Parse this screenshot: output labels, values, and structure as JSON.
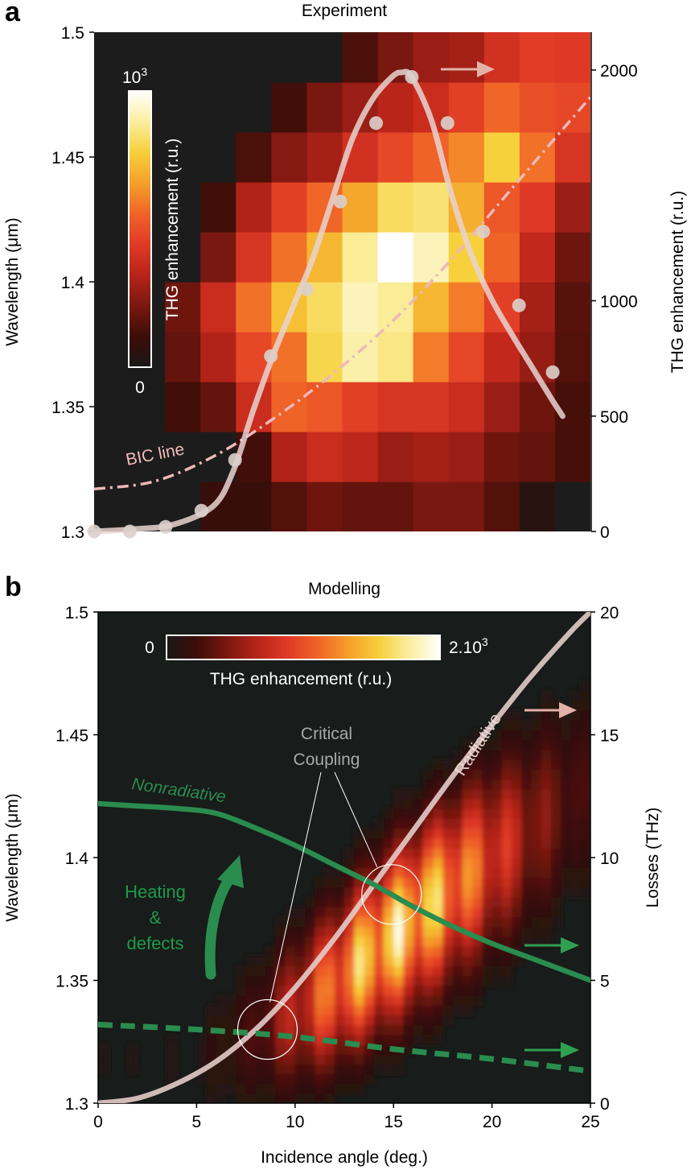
{
  "chart_data": [
    {
      "panel": "a",
      "type": "heatmap",
      "title": "Experiment",
      "ylabel": "Wavelength (μm)",
      "y2label": "THG enhancement (r.u.)",
      "ylim": [
        1.3,
        1.5
      ],
      "xlim": [
        0,
        25
      ],
      "y2lim": [
        0,
        2000
      ],
      "yticks": [
        "1.3",
        "1.35",
        "1.4",
        "1.45",
        "1.5"
      ],
      "y2ticks": [
        "0",
        "500",
        "1000",
        "2000"
      ],
      "colorbar": {
        "label": "THG enhancement (r.u.)",
        "min_label": "0",
        "max_label": "10",
        "max_exp": "3"
      },
      "heatmap": {
        "x_bins_deg": [
          0,
          1.786,
          3.571,
          5.357,
          7.143,
          8.929,
          10.714,
          12.5,
          14.286,
          16.071,
          17.857,
          19.643,
          21.429,
          23.214,
          25
        ],
        "y_bins_um": [
          1.3,
          1.32,
          1.34,
          1.36,
          1.38,
          1.4,
          1.42,
          1.44,
          1.46,
          1.48,
          1.5
        ],
        "colormap": [
          "#181818",
          "#3c0d08",
          "#7a1810",
          "#b82419",
          "#e03a26",
          "#f06428",
          "#f5a02a",
          "#f6d03a",
          "#fbeea0",
          "#ffffff"
        ],
        "values": [
          [
            0,
            0,
            0,
            0.1,
            0.1,
            0.15,
            0.2,
            0.18,
            0.18,
            0.22,
            0.22,
            0.15,
            0.05,
            0
          ],
          [
            0,
            0,
            0,
            0,
            0.12,
            0.32,
            0.38,
            0.35,
            0.28,
            0.3,
            0.28,
            0.2,
            0.18,
            0.13
          ],
          [
            0,
            0,
            0.12,
            0.18,
            0.38,
            0.55,
            0.52,
            0.46,
            0.42,
            0.42,
            0.38,
            0.28,
            0.2,
            0.13
          ],
          [
            0,
            0,
            0.18,
            0.32,
            0.48,
            0.58,
            0.8,
            0.9,
            0.86,
            0.6,
            0.48,
            0.36,
            0.27,
            0.15
          ],
          [
            0,
            0,
            0.2,
            0.38,
            0.58,
            0.74,
            0.82,
            0.92,
            0.88,
            0.72,
            0.6,
            0.46,
            0.3,
            0.16
          ],
          [
            0,
            0,
            0,
            0.22,
            0.42,
            0.58,
            0.72,
            0.88,
            1.0,
            0.92,
            0.78,
            0.55,
            0.36,
            0.2
          ],
          [
            0,
            0,
            0,
            0.12,
            0.32,
            0.46,
            0.56,
            0.68,
            0.82,
            0.84,
            0.7,
            0.52,
            0.44,
            0.28
          ],
          [
            0,
            0,
            0,
            0,
            0.14,
            0.24,
            0.3,
            0.4,
            0.48,
            0.55,
            0.62,
            0.78,
            0.58,
            0.42
          ],
          [
            0,
            0,
            0,
            0,
            0,
            0.12,
            0.22,
            0.28,
            0.34,
            0.38,
            0.46,
            0.56,
            0.5,
            0.48
          ],
          [
            0,
            0,
            0,
            0,
            0,
            0,
            0,
            0.14,
            0.22,
            0.28,
            0.3,
            0.4,
            0.45,
            0.44
          ],
          [
            0,
            0,
            0,
            0,
            0,
            0,
            0,
            0,
            0,
            0.18,
            0.28,
            0.36,
            0.4,
            0.4
          ]
        ]
      },
      "enhancement_points": {
        "x": [
          0,
          1.8,
          3.6,
          5.4,
          7.1,
          8.9,
          10.7,
          12.4,
          14.2,
          16.0,
          17.8,
          19.6,
          21.4,
          23.1
        ],
        "y": [
          0,
          0,
          20,
          90,
          310,
          760,
          1050,
          1430,
          1770,
          1970,
          1770,
          1300,
          980,
          690
        ]
      },
      "enhancement_fit": {
        "x": [
          0,
          2,
          4,
          6,
          7,
          8,
          9,
          10,
          11,
          12,
          13,
          14,
          15,
          15.5,
          16,
          17,
          18,
          19,
          20,
          21,
          22,
          23,
          23.6
        ],
        "y": [
          0,
          10,
          30,
          110,
          260,
          520,
          760,
          970,
          1180,
          1440,
          1700,
          1870,
          1970,
          1990,
          1970,
          1780,
          1460,
          1200,
          1010,
          860,
          720,
          580,
          500
        ]
      },
      "bic_line": {
        "name": "BIC line",
        "x": [
          0,
          3,
          6,
          9,
          12,
          15,
          18,
          21,
          25
        ],
        "y_um": [
          1.317,
          1.32,
          1.33,
          1.345,
          1.363,
          1.384,
          1.409,
          1.437,
          1.474
        ]
      },
      "annotations": [
        "BIC line"
      ]
    },
    {
      "panel": "b",
      "type": "heatmap",
      "title": "Modelling",
      "xlabel": "Incidence angle (deg.)",
      "ylabel": "Wavelength (μm)",
      "y2label": "Losses (THz)",
      "xlim": [
        0,
        25
      ],
      "ylim": [
        1.3,
        1.5
      ],
      "y2lim": [
        0,
        20
      ],
      "xticks": [
        "0",
        "5",
        "10",
        "15",
        "20",
        "25"
      ],
      "yticks": [
        "1.3",
        "1.35",
        "1.4",
        "1.45",
        "1.5"
      ],
      "y2ticks": [
        "0",
        "5",
        "10",
        "15",
        "20"
      ],
      "colorbar": {
        "label": "THG enhancement (r.u.)",
        "min_label": "0",
        "max_label": "2.10",
        "max_exp": "3"
      },
      "resonance_band": {
        "center_deg": [
          5,
          8,
          10,
          12,
          14,
          16,
          18,
          20,
          22,
          24,
          25
        ],
        "center_um": [
          1.318,
          1.328,
          1.338,
          1.348,
          1.362,
          1.375,
          1.388,
          1.4,
          1.412,
          1.424,
          1.43
        ],
        "peak": [
          0.04,
          0.16,
          0.42,
          0.72,
          0.95,
          0.98,
          0.8,
          0.55,
          0.32,
          0.18,
          0.12
        ]
      },
      "series": [
        {
          "name": "Radiative",
          "x": [
            0,
            2,
            4,
            6,
            8,
            10,
            12,
            14,
            16,
            18,
            20,
            22,
            24,
            25
          ],
          "y": [
            0,
            0.2,
            0.8,
            1.7,
            3.0,
            4.7,
            6.7,
            8.9,
            11.1,
            13.3,
            15.4,
            17.4,
            19.2,
            20.0
          ]
        },
        {
          "name": "Nonradiative",
          "x": [
            0,
            2,
            4,
            6,
            8,
            10,
            12,
            14,
            16,
            18,
            20,
            22,
            24,
            25
          ],
          "y": [
            12.2,
            12.1,
            12.0,
            11.8,
            11.2,
            10.5,
            9.7,
            8.9,
            8.0,
            7.2,
            6.5,
            5.9,
            5.3,
            5.0
          ]
        },
        {
          "name": "",
          "style": "dashed",
          "x": [
            0,
            5,
            10,
            15,
            20,
            25
          ],
          "y": [
            3.2,
            3.0,
            2.7,
            2.2,
            1.8,
            1.3
          ]
        }
      ],
      "annotations": {
        "critical_coupling_line1": "Critical",
        "critical_coupling_line2": "Coupling",
        "heating_line1": "Heating",
        "heating_line2": "&",
        "heating_line3": "defects",
        "critical_points": [
          {
            "x": 8.6,
            "y": 3.0
          },
          {
            "x": 14.9,
            "y": 8.5
          }
        ]
      }
    }
  ],
  "labels": {
    "panel_a": "a",
    "panel_b": "b"
  },
  "colors": {
    "pink_line": "#efb8b8",
    "green_line": "#2a8c4e",
    "green_text": "#1f9a4a",
    "frame_dark": "#1b1b1b"
  }
}
